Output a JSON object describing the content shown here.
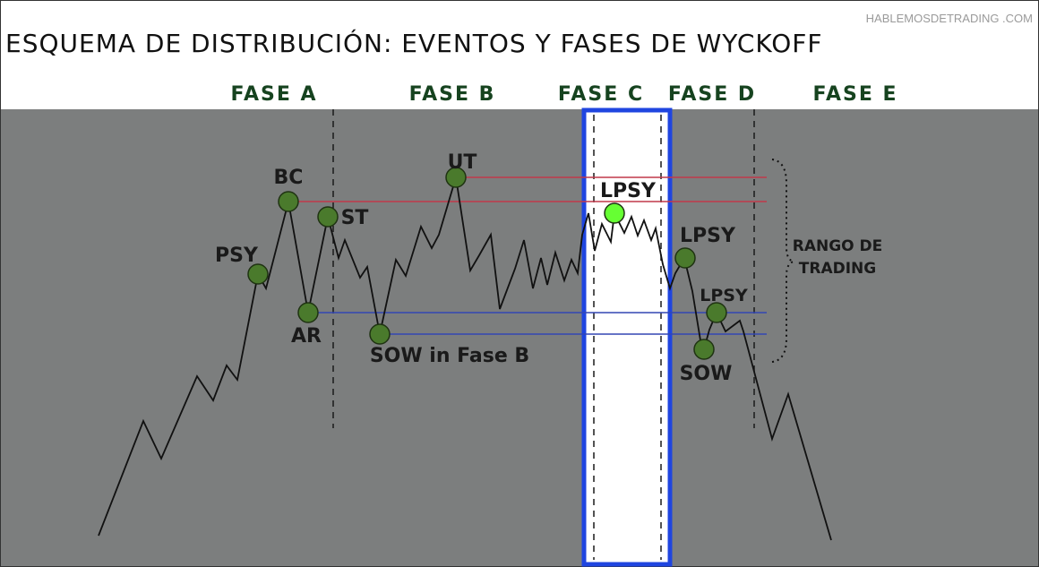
{
  "header": {
    "title": "ESQUEMA DE DISTRIBUCIÓN: EVENTOS Y FASES DE  WYCKOFF",
    "watermark": "HABLEMOSDETRADING .COM"
  },
  "phases": [
    "FASE A",
    "FASE B",
    "FASE C",
    "FASE D",
    "FASE E"
  ],
  "events": {
    "psy": "PSY",
    "bc": "BC",
    "ar": "AR",
    "st": "ST",
    "ut": "UT",
    "sow_b": "SOW in Fase B",
    "lpsy_c": "LPSY",
    "lpsy_d1": "LPSY",
    "lpsy_d2": "LPSY",
    "sow_d": "SOW"
  },
  "range_label": [
    "RANGO DE",
    "TRADING"
  ],
  "colors": {
    "chart_bg": "#7c7e7e",
    "header_bg": "#ffffff",
    "phase_text": "#16431f",
    "event_marker": "#4a7a2c",
    "highlight_marker": "#66ff33",
    "resistance_line": "#c0394a",
    "support_line": "#3346b3",
    "highlight_box": "#1f45e0",
    "price_line": "#111111"
  }
}
